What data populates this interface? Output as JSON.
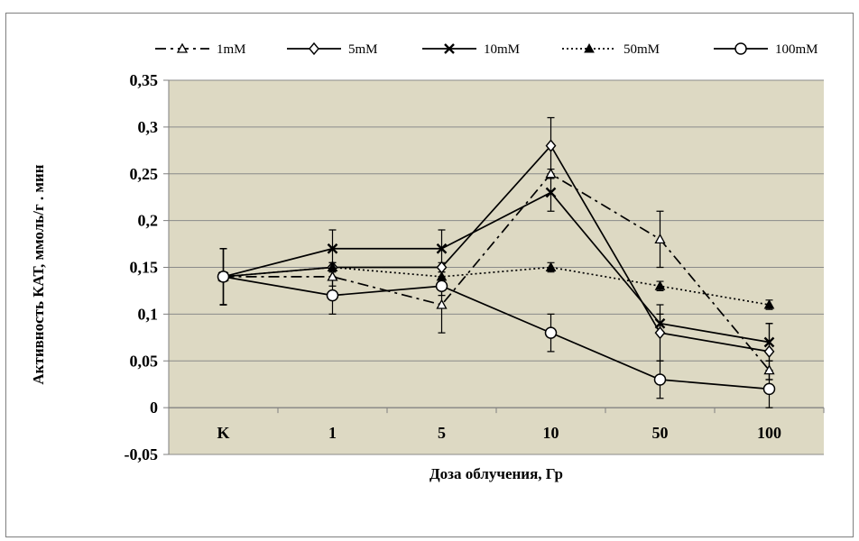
{
  "chart_data": {
    "type": "line",
    "title": "",
    "xlabel": "Доза облучения, Гр",
    "ylabel": "Активность КАТ, ммоль/г . мин",
    "categories": [
      "K",
      "1",
      "5",
      "10",
      "50",
      "100"
    ],
    "ylim": [
      -0.05,
      0.35
    ],
    "ytick_labels": [
      "-0,05",
      "0",
      "0,05",
      "0,1",
      "0,15",
      "0,2",
      "0,25",
      "0,3",
      "0,35"
    ],
    "grid": true,
    "legend_position": "top",
    "plot_background": "#ddd9c3",
    "series": [
      {
        "name": "1mM",
        "marker": "tri-open",
        "dash": "12,5,3,5",
        "values": [
          0.14,
          0.14,
          0.11,
          0.25,
          0.18,
          0.04
        ],
        "errors": [
          0.03,
          0.01,
          0.03,
          0.005,
          0.03,
          0.01
        ]
      },
      {
        "name": "5mM",
        "marker": "diamond",
        "dash": "",
        "values": [
          0.14,
          0.15,
          0.15,
          0.28,
          0.08,
          0.06
        ],
        "errors": [
          0.03,
          0.005,
          0.005,
          0.03,
          0.03,
          0.03
        ]
      },
      {
        "name": "10mM",
        "marker": "x",
        "dash": "",
        "values": [
          0.14,
          0.17,
          0.17,
          0.23,
          0.09,
          0.07
        ],
        "errors": [
          0.03,
          0.02,
          0.02,
          0.02,
          0.01,
          0.02
        ]
      },
      {
        "name": "50mM",
        "marker": "tri-filled",
        "dash": "2,3",
        "values": [
          0.14,
          0.15,
          0.14,
          0.15,
          0.13,
          0.11
        ],
        "errors": [
          0.03,
          0.005,
          0.005,
          0.005,
          0.005,
          0.005
        ]
      },
      {
        "name": "100mM",
        "marker": "circle",
        "dash": "",
        "values": [
          0.14,
          0.12,
          0.13,
          0.08,
          0.03,
          0.02
        ],
        "errors": [
          0.03,
          0.02,
          0.01,
          0.02,
          0.02,
          0.02
        ]
      }
    ]
  }
}
